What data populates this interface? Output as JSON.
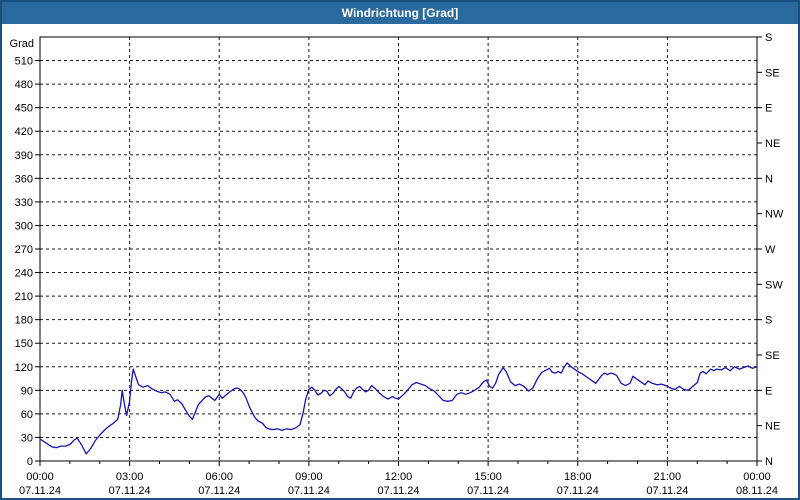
{
  "window": {
    "title": "Windrichtung [Grad]"
  },
  "colors": {
    "titlebar_bg": "#2B6A9E",
    "frame": "#1B4F7E",
    "title_text": "#FFFFFF",
    "plot_border": "#000000",
    "grid": "#1A1A1A",
    "line": "#1515AA",
    "background": "#FFFFFF"
  },
  "chart_data": {
    "type": "line",
    "title": "Windrichtung [Grad]",
    "ylabel": "Grad",
    "ylim": [
      0,
      540
    ],
    "xlim_hours": [
      0,
      24
    ],
    "grid": "dashed, every 30 deg horizontal, every 3 h vertical",
    "legend_position": "none",
    "left_axis": {
      "unit_label": "Grad",
      "tick_step": 30,
      "ticks": [
        0,
        30,
        60,
        90,
        120,
        150,
        180,
        210,
        240,
        270,
        300,
        330,
        360,
        390,
        420,
        450,
        480,
        510
      ]
    },
    "right_axis": {
      "tick_step": 45,
      "ticks": [
        {
          "value": 0,
          "label": "N"
        },
        {
          "value": 45,
          "label": "NE"
        },
        {
          "value": 90,
          "label": "E"
        },
        {
          "value": 135,
          "label": "SE"
        },
        {
          "value": 180,
          "label": "S"
        },
        {
          "value": 225,
          "label": "SW"
        },
        {
          "value": 270,
          "label": "W"
        },
        {
          "value": 315,
          "label": "NW"
        },
        {
          "value": 360,
          "label": "N"
        },
        {
          "value": 405,
          "label": "NE"
        },
        {
          "value": 450,
          "label": "E"
        },
        {
          "value": 495,
          "label": "SE"
        },
        {
          "value": 540,
          "label": "S"
        }
      ]
    },
    "x_axis": {
      "minor_tick_hours": 1,
      "ticks": [
        {
          "hours": 0,
          "time": "00:00",
          "date": "07.11.24"
        },
        {
          "hours": 3,
          "time": "03:00",
          "date": "07.11.24"
        },
        {
          "hours": 6,
          "time": "06:00",
          "date": "07.11.24"
        },
        {
          "hours": 9,
          "time": "09:00",
          "date": "07.11.24"
        },
        {
          "hours": 12,
          "time": "12:00",
          "date": "07.11.24"
        },
        {
          "hours": 15,
          "time": "15:00",
          "date": "07.11.24"
        },
        {
          "hours": 18,
          "time": "18:00",
          "date": "07.11.24"
        },
        {
          "hours": 21,
          "time": "21:00",
          "date": "07.11.24"
        },
        {
          "hours": 24,
          "time": "00:00",
          "date": "08.11.24"
        }
      ]
    },
    "series": [
      {
        "name": "Windrichtung",
        "color": "#1515AA",
        "points": [
          [
            0.0,
            28
          ],
          [
            0.2,
            23
          ],
          [
            0.4,
            18
          ],
          [
            0.55,
            17
          ],
          [
            0.7,
            19
          ],
          [
            0.85,
            19
          ],
          [
            1.0,
            21
          ],
          [
            1.15,
            27
          ],
          [
            1.25,
            29
          ],
          [
            1.4,
            20
          ],
          [
            1.55,
            9
          ],
          [
            1.7,
            16
          ],
          [
            1.85,
            26
          ],
          [
            2.0,
            33
          ],
          [
            2.15,
            39
          ],
          [
            2.3,
            44
          ],
          [
            2.45,
            48
          ],
          [
            2.6,
            53
          ],
          [
            2.7,
            72
          ],
          [
            2.75,
            90
          ],
          [
            2.82,
            74
          ],
          [
            2.9,
            58
          ],
          [
            3.0,
            76
          ],
          [
            3.06,
            100
          ],
          [
            3.12,
            117
          ],
          [
            3.2,
            108
          ],
          [
            3.3,
            97
          ],
          [
            3.45,
            94
          ],
          [
            3.6,
            96
          ],
          [
            3.75,
            92
          ],
          [
            3.9,
            89
          ],
          [
            4.05,
            87
          ],
          [
            4.2,
            88
          ],
          [
            4.35,
            85
          ],
          [
            4.5,
            76
          ],
          [
            4.6,
            78
          ],
          [
            4.75,
            73
          ],
          [
            4.85,
            66
          ],
          [
            5.0,
            57
          ],
          [
            5.1,
            53
          ],
          [
            5.2,
            62
          ],
          [
            5.3,
            72
          ],
          [
            5.45,
            78
          ],
          [
            5.55,
            82
          ],
          [
            5.65,
            83
          ],
          [
            5.75,
            80
          ],
          [
            5.85,
            77
          ],
          [
            6.0,
            85
          ],
          [
            6.1,
            80
          ],
          [
            6.2,
            83
          ],
          [
            6.35,
            88
          ],
          [
            6.5,
            92
          ],
          [
            6.6,
            93
          ],
          [
            6.7,
            91
          ],
          [
            6.8,
            87
          ],
          [
            6.9,
            80
          ],
          [
            7.0,
            70
          ],
          [
            7.1,
            62
          ],
          [
            7.2,
            55
          ],
          [
            7.3,
            51
          ],
          [
            7.45,
            48
          ],
          [
            7.55,
            43
          ],
          [
            7.65,
            41
          ],
          [
            7.8,
            40
          ],
          [
            7.95,
            41
          ],
          [
            8.1,
            39
          ],
          [
            8.25,
            41
          ],
          [
            8.4,
            40
          ],
          [
            8.55,
            42
          ],
          [
            8.7,
            46
          ],
          [
            8.8,
            60
          ],
          [
            8.9,
            80
          ],
          [
            9.0,
            91
          ],
          [
            9.1,
            94
          ],
          [
            9.2,
            90
          ],
          [
            9.3,
            84
          ],
          [
            9.4,
            86
          ],
          [
            9.5,
            90
          ],
          [
            9.6,
            89
          ],
          [
            9.7,
            83
          ],
          [
            9.8,
            86
          ],
          [
            9.9,
            91
          ],
          [
            10.0,
            95
          ],
          [
            10.1,
            92
          ],
          [
            10.2,
            88
          ],
          [
            10.3,
            82
          ],
          [
            10.4,
            80
          ],
          [
            10.5,
            88
          ],
          [
            10.6,
            93
          ],
          [
            10.7,
            95
          ],
          [
            10.8,
            91
          ],
          [
            10.9,
            88
          ],
          [
            11.0,
            90
          ],
          [
            11.1,
            96
          ],
          [
            11.2,
            93
          ],
          [
            11.35,
            87
          ],
          [
            11.5,
            82
          ],
          [
            11.65,
            79
          ],
          [
            11.8,
            82
          ],
          [
            11.9,
            80
          ],
          [
            12.0,
            79
          ],
          [
            12.15,
            84
          ],
          [
            12.3,
            90
          ],
          [
            12.45,
            97
          ],
          [
            12.6,
            100
          ],
          [
            12.75,
            98
          ],
          [
            12.9,
            96
          ],
          [
            13.05,
            92
          ],
          [
            13.2,
            89
          ],
          [
            13.35,
            83
          ],
          [
            13.5,
            77
          ],
          [
            13.65,
            76
          ],
          [
            13.8,
            77
          ],
          [
            13.95,
            85
          ],
          [
            14.1,
            87
          ],
          [
            14.25,
            85
          ],
          [
            14.4,
            87
          ],
          [
            14.55,
            90
          ],
          [
            14.7,
            94
          ],
          [
            14.85,
            101
          ],
          [
            14.95,
            103
          ],
          [
            15.05,
            95
          ],
          [
            15.15,
            93
          ],
          [
            15.25,
            99
          ],
          [
            15.35,
            110
          ],
          [
            15.5,
            119
          ],
          [
            15.6,
            114
          ],
          [
            15.75,
            101
          ],
          [
            15.9,
            96
          ],
          [
            16.05,
            98
          ],
          [
            16.2,
            95
          ],
          [
            16.35,
            89
          ],
          [
            16.5,
            93
          ],
          [
            16.65,
            105
          ],
          [
            16.8,
            113
          ],
          [
            16.95,
            116
          ],
          [
            17.05,
            118
          ],
          [
            17.15,
            113
          ],
          [
            17.25,
            112
          ],
          [
            17.35,
            114
          ],
          [
            17.45,
            112
          ],
          [
            17.55,
            120
          ],
          [
            17.65,
            125
          ],
          [
            17.75,
            121
          ],
          [
            17.85,
            118
          ],
          [
            18.0,
            114
          ],
          [
            18.15,
            111
          ],
          [
            18.3,
            107
          ],
          [
            18.45,
            103
          ],
          [
            18.6,
            99
          ],
          [
            18.7,
            104
          ],
          [
            18.8,
            109
          ],
          [
            18.9,
            112
          ],
          [
            19.0,
            110
          ],
          [
            19.1,
            112
          ],
          [
            19.2,
            111
          ],
          [
            19.3,
            109
          ],
          [
            19.45,
            99
          ],
          [
            19.6,
            96
          ],
          [
            19.75,
            99
          ],
          [
            19.85,
            108
          ],
          [
            19.95,
            105
          ],
          [
            20.1,
            101
          ],
          [
            20.25,
            97
          ],
          [
            20.35,
            102
          ],
          [
            20.5,
            99
          ],
          [
            20.65,
            97
          ],
          [
            20.8,
            98
          ],
          [
            20.95,
            96
          ],
          [
            21.1,
            93
          ],
          [
            21.25,
            91
          ],
          [
            21.4,
            95
          ],
          [
            21.55,
            91
          ],
          [
            21.7,
            90
          ],
          [
            21.85,
            95
          ],
          [
            22.0,
            100
          ],
          [
            22.1,
            112
          ],
          [
            22.2,
            114
          ],
          [
            22.3,
            111
          ],
          [
            22.45,
            117
          ],
          [
            22.55,
            115
          ],
          [
            22.65,
            117
          ],
          [
            22.8,
            116
          ],
          [
            22.95,
            119
          ],
          [
            23.1,
            115
          ],
          [
            23.25,
            120
          ],
          [
            23.4,
            117
          ],
          [
            23.55,
            119
          ],
          [
            23.7,
            121
          ],
          [
            23.85,
            118
          ],
          [
            24.0,
            120
          ]
        ]
      }
    ]
  }
}
